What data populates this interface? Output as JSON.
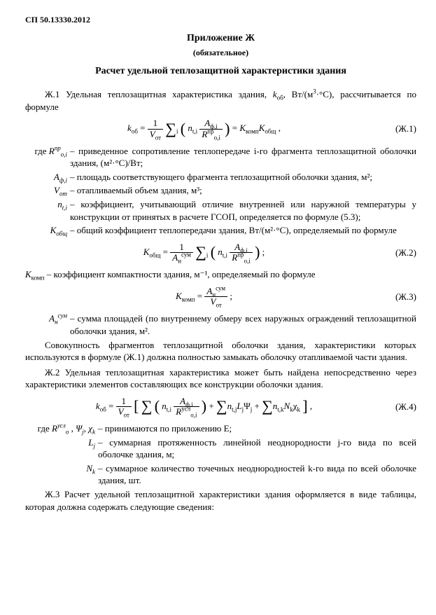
{
  "header": "СП 50.13330.2012",
  "appendix": {
    "title": "Приложение Ж",
    "sub": "(обязательное)",
    "section": "Расчет удельной теплозащитной характеристики здания"
  },
  "p1a": "Ж.1 Удельная теплозащитная характеристика здания, ",
  "p1b": ", Вт/(м",
  "p1c": "·°C), рассчитывается по формуле",
  "eq1_num": "(Ж.1)",
  "where_intro": "где ",
  "w_R": "– приведенное сопротивление теплопередаче i-го фрагмента теплозащитной оболочки здания, (м²·°C)/Вт;",
  "w_A": "– площадь соответствующего фрагмента теплозащитной оболочки здания, м²;",
  "w_V": "– отапливаемый объем здания, м³;",
  "w_n": "– коэффициент, учитывающий отличие внутренней или наружной температуры у конструкции от принятых в расчете ГСОП, определяется по формуле (5.3);",
  "w_K": "– общий коэффициент теплопередачи здания, Вт/(м²·°C), определяемый по формуле",
  "eq2_num": "(Ж.2)",
  "p_Kk": " – коэффициент компактности здания, м⁻¹, определяемый по формуле",
  "eq3_num": "(Ж.3)",
  "w_Asum": " – сумма площадей (по внутреннему обмеру всех наружных ограждений теплозащитной оболочки здания, м².",
  "p2": "Совокупность фрагментов теплозащитной оболочки здания, характеристики которых используются в формуле (Ж.1) должна полностью замыкать оболочку отапливаемой части здания.",
  "p3": "Ж.2 Удельная теплозащитная характеристика может быть найдена непосредственно через характеристики элементов составляющих все конструкции оболочки здания.",
  "eq4_num": "(Ж.4)",
  "where4_intro": "где ",
  "w4_R": " – принимаются по приложению Е;",
  "w4_L": "– суммарная протяженность линейной неоднородности j-го вида по всей оболочке здания, м;",
  "w4_N": "– суммарное количество точечных неоднородностей k-го вида по всей оболочке здания, шт.",
  "p4": "Ж.3 Расчет удельной теплозащитной характеристики здания оформляется в виде таблицы, которая должна содержать следующие сведения:"
}
